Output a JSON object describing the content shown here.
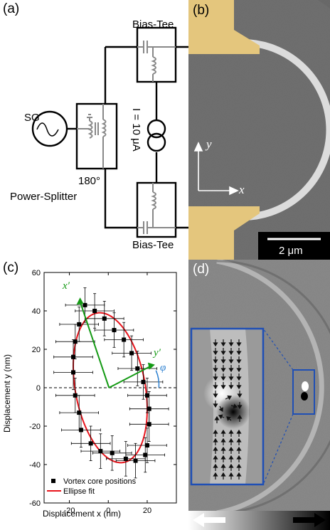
{
  "panels": {
    "a": {
      "label": "(a)",
      "sg_label": "SG",
      "bias_tee_top": "Bias-Tee",
      "bias_tee_bottom": "Bias-Tee",
      "current_label": "I = 10 μA",
      "phase_label": "180°",
      "splitter_label": "Power-Splitter"
    },
    "b": {
      "label": "(b)",
      "axis_y": "y",
      "axis_x": "x",
      "scalebar": "2 μm",
      "colors": {
        "background": "#6f6f6f",
        "contact": "#e2c57a",
        "wire": "#d8d8d8"
      }
    },
    "c": {
      "label": "(c)",
      "xlabel": "Displacement x (nm)",
      "ylabel": "Displacement y (nm)",
      "legend_points": "Vortex core positions",
      "legend_fit": "Ellipse fit",
      "axis_xprime": "x′",
      "axis_yprime": "y′",
      "angle_label": "φ",
      "colors": {
        "fit": "#e8141c",
        "axes": "#149a14",
        "angle": "#2a7fd0"
      }
    },
    "d": {
      "label": "(d)",
      "colors": {
        "frame": "#1f4fb5",
        "background": "#8a8a8a"
      }
    }
  },
  "chart_data": {
    "type": "scatter",
    "xlabel": "Displacement x (nm)",
    "ylabel": "Displacement y (nm)",
    "xlim": [
      -33,
      35
    ],
    "ylim": [
      -60,
      60
    ],
    "xticks": [
      -20,
      0,
      20
    ],
    "yticks": [
      -60,
      -40,
      -20,
      0,
      20,
      40,
      60
    ],
    "series": [
      {
        "name": "Vortex core positions",
        "x": [
          -12,
          -7,
          -2,
          3,
          8,
          12,
          15,
          18,
          20,
          21,
          21,
          20,
          19,
          14,
          9,
          2,
          -4,
          -9,
          -14,
          -15,
          -17,
          -18,
          -18,
          -17,
          -15
        ],
        "y": [
          43,
          40,
          36,
          30,
          25,
          18,
          10,
          3,
          -4,
          -11,
          -19,
          -30,
          -35,
          -38,
          -37,
          -34,
          -33,
          -29,
          -22,
          -13,
          -4,
          8,
          16,
          24,
          33
        ],
        "xerr": [
          10,
          10,
          10,
          10,
          10,
          10,
          10,
          10,
          10,
          10,
          10,
          10,
          10,
          10,
          10,
          10,
          10,
          10,
          10,
          10,
          10,
          10,
          10,
          10,
          10
        ],
        "yerr": [
          9,
          9,
          9,
          9,
          9,
          9,
          9,
          9,
          9,
          9,
          9,
          9,
          9,
          9,
          9,
          9,
          9,
          9,
          9,
          9,
          9,
          9,
          9,
          9,
          9
        ]
      },
      {
        "name": "Ellipse fit",
        "type": "ellipse",
        "center": [
          1,
          0
        ],
        "semi_major": 39.5,
        "semi_minor": 18,
        "angle_deg": 100
      }
    ],
    "dashed_zero_line": true
  }
}
